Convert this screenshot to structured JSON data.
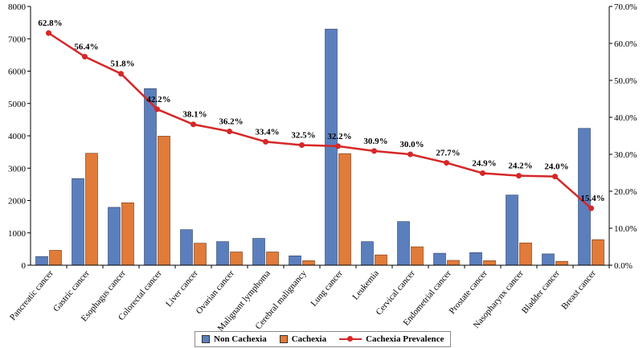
{
  "chart_data": {
    "type": "bar",
    "categories": [
      "Pancreatic cancer",
      "Gastric cancer",
      "Esophagus cancer",
      "Colorectal cancer",
      "Liver cancer",
      "Ovarian cancer",
      "Malignant lymphoma",
      "Cerebral malignancy",
      "Lung cancer",
      "Leukemia",
      "Cervical cancer",
      "Endometrial cancer",
      "Prostate cancer",
      "Nasopharynx cancer",
      "Bladder cancer",
      "Breast cancer"
    ],
    "series": [
      {
        "name": "Non Cachexia",
        "type": "bar",
        "axis": "left",
        "color": "#5b7fbd",
        "values": [
          270,
          2680,
          1790,
          5460,
          1100,
          730,
          830,
          290,
          7300,
          730,
          1350,
          370,
          390,
          2170,
          350,
          4230
        ]
      },
      {
        "name": "Cachexia",
        "type": "bar",
        "axis": "left",
        "color": "#e07b39",
        "values": [
          460,
          3460,
          1930,
          3990,
          680,
          410,
          410,
          140,
          3450,
          320,
          570,
          150,
          140,
          690,
          120,
          790
        ]
      },
      {
        "name": "Cachexia Prevalence",
        "type": "line",
        "axis": "right",
        "color": "#d62728",
        "values": [
          62.8,
          56.4,
          51.8,
          42.2,
          38.1,
          36.2,
          33.4,
          32.5,
          32.2,
          30.9,
          30.0,
          27.7,
          24.9,
          24.2,
          24.0,
          15.4
        ],
        "labels": [
          "62.8%",
          "56.4%",
          "51.8%",
          "42.2%",
          "38.1%",
          "36.2%",
          "33.4%",
          "32.5%",
          "32.2%",
          "30.9%",
          "30.0%",
          "27.7%",
          "24.9%",
          "24.2%",
          "24.0%",
          "15.4%"
        ]
      }
    ],
    "ylim": [
      0,
      8000
    ],
    "yticks": [
      "0",
      "1000",
      "2000",
      "3000",
      "4000",
      "5000",
      "6000",
      "7000",
      "8000"
    ],
    "y2lim": [
      0,
      70
    ],
    "y2ticks": [
      "0.0%",
      "10.0%",
      "20.0%",
      "30.0%",
      "40.0%",
      "50.0%",
      "60.0%",
      "70.0%"
    ],
    "legend_position": "bottom",
    "grid": false
  }
}
